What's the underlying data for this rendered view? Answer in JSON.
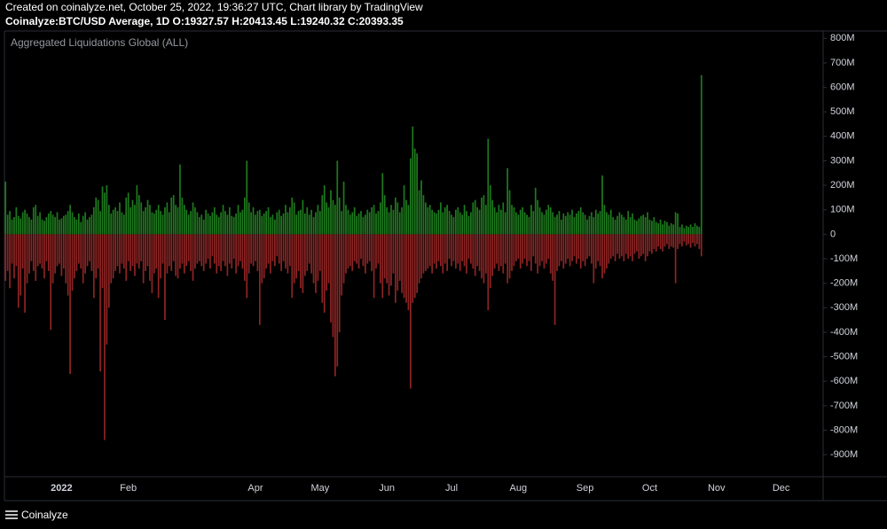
{
  "header": {
    "line1": "Created on coinalyze.net, October 25, 2022, 19:36:27 UTC, Chart library by TradingView",
    "line2": "Coinalyze:BTC/USD Average, 1D O:19327.57 H:20413.45 L:19240.32 C:20393.35"
  },
  "footer": {
    "brand": "Coinalyze"
  },
  "chart_data": {
    "type": "bar",
    "title": "Aggregated Liquidations Global (ALL)",
    "categories": [
      null,
      null,
      null,
      null,
      null,
      null,
      null,
      null,
      null,
      null,
      null,
      null,
      null,
      null,
      null,
      null,
      null,
      null,
      null,
      null,
      null,
      null,
      null,
      null,
      null,
      null,
      "2022",
      null,
      null,
      null,
      null,
      null,
      null,
      null,
      null,
      null,
      null,
      null,
      null,
      null,
      null,
      null,
      null,
      null,
      null,
      null,
      null,
      null,
      null,
      null,
      null,
      null,
      null,
      null,
      null,
      null,
      null,
      "Feb",
      null,
      null,
      null,
      null,
      null,
      null,
      null,
      null,
      null,
      null,
      null,
      null,
      null,
      null,
      null,
      null,
      null,
      null,
      null,
      null,
      null,
      null,
      null,
      null,
      null,
      null,
      null,
      null,
      null,
      null,
      null,
      null,
      null,
      null,
      null,
      null,
      null,
      null,
      null,
      null,
      null,
      null,
      null,
      null,
      null,
      null,
      null,
      null,
      null,
      null,
      null,
      null,
      null,
      null,
      null,
      null,
      null,
      null,
      "Apr",
      null,
      null,
      null,
      null,
      null,
      null,
      null,
      null,
      null,
      null,
      null,
      null,
      null,
      null,
      null,
      null,
      null,
      null,
      null,
      null,
      null,
      null,
      null,
      null,
      null,
      null,
      null,
      null,
      null,
      "May",
      null,
      null,
      null,
      null,
      null,
      null,
      null,
      null,
      null,
      null,
      null,
      null,
      null,
      null,
      null,
      null,
      null,
      null,
      null,
      null,
      null,
      null,
      null,
      null,
      null,
      null,
      null,
      null,
      null,
      null,
      "Jun",
      null,
      null,
      null,
      null,
      null,
      null,
      null,
      null,
      null,
      null,
      null,
      null,
      null,
      null,
      null,
      null,
      null,
      null,
      null,
      null,
      null,
      null,
      null,
      null,
      null,
      null,
      null,
      null,
      null,
      "Jul",
      null,
      null,
      null,
      null,
      null,
      null,
      null,
      null,
      null,
      null,
      null,
      null,
      null,
      null,
      null,
      null,
      null,
      null,
      null,
      null,
      null,
      null,
      null,
      null,
      null,
      null,
      null,
      null,
      null,
      null,
      "Aug",
      null,
      null,
      null,
      null,
      null,
      null,
      null,
      null,
      null,
      null,
      null,
      null,
      null,
      null,
      null,
      null,
      null,
      null,
      null,
      null,
      null,
      null,
      null,
      null,
      null,
      null,
      null,
      null,
      null,
      null,
      "Sep",
      null,
      null,
      null,
      null,
      null,
      null,
      null,
      null,
      null,
      null,
      null,
      null,
      null,
      null,
      null,
      null,
      null,
      null,
      null,
      null,
      null,
      null,
      null,
      null,
      null,
      null,
      null,
      null,
      null,
      "Oct",
      null,
      null,
      null,
      null,
      null,
      null,
      null,
      null,
      null,
      null,
      null,
      null,
      null,
      null,
      null,
      null,
      null,
      null,
      null,
      null,
      null,
      null,
      null,
      null,
      null,
      null,
      null,
      null,
      null,
      null,
      "Nov",
      null,
      null,
      null,
      null,
      null,
      null,
      null,
      null,
      null,
      null,
      null,
      null,
      null,
      null,
      null,
      null,
      null,
      null,
      null,
      null,
      null,
      null,
      null,
      null,
      null,
      null,
      null,
      null,
      null,
      "Dec",
      null,
      null,
      null,
      null,
      null,
      null,
      null,
      null,
      null,
      null,
      null,
      null,
      null,
      null,
      null,
      null,
      null,
      null,
      null
    ],
    "series": [
      {
        "color": "#1e7a1e",
        "values": [
          215,
          80,
          95,
          60,
          70,
          110,
          75,
          65,
          90,
          100,
          85,
          70,
          60,
          110,
          120,
          75,
          90,
          60,
          55,
          70,
          85,
          95,
          80,
          70,
          90,
          60,
          65,
          75,
          80,
          95,
          120,
          90,
          70,
          60,
          85,
          50,
          75,
          90,
          60,
          70,
          80,
          110,
          150,
          140,
          95,
          195,
          170,
          200,
          120,
          85,
          100,
          110,
          95,
          130,
          90,
          80,
          150,
          170,
          110,
          140,
          120,
          200,
          160,
          130,
          95,
          110,
          140,
          120,
          90,
          85,
          100,
          120,
          95,
          80,
          110,
          130,
          90,
          150,
          160,
          120,
          110,
          285,
          150,
          120,
          100,
          80,
          95,
          130,
          110,
          90,
          70,
          80,
          60,
          100,
          85,
          75,
          90,
          110,
          80,
          70,
          90,
          120,
          95,
          80,
          110,
          75,
          70,
          85,
          120,
          90,
          100,
          150,
          300,
          130,
          90,
          110,
          80,
          95,
          100,
          75,
          85,
          95,
          110,
          70,
          80,
          60,
          90,
          100,
          75,
          85,
          120,
          90,
          110,
          150,
          130,
          80,
          95,
          100,
          140,
          85,
          110,
          80,
          100,
          70,
          90,
          120,
          95,
          160,
          200,
          130,
          110,
          180,
          140,
          120,
          300,
          150,
          95,
          215,
          120,
          100,
          80,
          90,
          110,
          75,
          85,
          95,
          70,
          80,
          100,
          90,
          110,
          120,
          85,
          95,
          130,
          250,
          160,
          110,
          90,
          120,
          100,
          150,
          130,
          90,
          110,
          200,
          140,
          120,
          310,
          440,
          350,
          330,
          180,
          220,
          160,
          130,
          110,
          120,
          100,
          90,
          85,
          100,
          130,
          90,
          110,
          120,
          95,
          80,
          70,
          100,
          110,
          90,
          80,
          120,
          95,
          75,
          90,
          130,
          140,
          110,
          100,
          150,
          160,
          120,
          390,
          200,
          140,
          110,
          90,
          120,
          100,
          130,
          90,
          270,
          180,
          120,
          110,
          90,
          80,
          100,
          110,
          90,
          80,
          70,
          120,
          95,
          190,
          140,
          110,
          90,
          80,
          100,
          120,
          110,
          90,
          70,
          80,
          95,
          60,
          85,
          75,
          90,
          80,
          100,
          70,
          85,
          95,
          110,
          90,
          80,
          60,
          75,
          90,
          70,
          100,
          85,
          95,
          240,
          120,
          90,
          80,
          100,
          70,
          60,
          75,
          90,
          80,
          70,
          60,
          95,
          70,
          85,
          60,
          55,
          65,
          75,
          80,
          70,
          90,
          60,
          55,
          70,
          50,
          45,
          60,
          40,
          55,
          50,
          35,
          45,
          40,
          90,
          85,
          30,
          40,
          25,
          35,
          30,
          40,
          30,
          45,
          35,
          30,
          650,
          null,
          null,
          null,
          null,
          null,
          null,
          null,
          null,
          null,
          null,
          null,
          null,
          null,
          null,
          null,
          null,
          null,
          null,
          null,
          null,
          null,
          null,
          null,
          null,
          null,
          null,
          null,
          null,
          null,
          null,
          null,
          null,
          null,
          null,
          null,
          null,
          null,
          null,
          null,
          null,
          null,
          null,
          null,
          null,
          null,
          null,
          null,
          null,
          null,
          null,
          null,
          null,
          null,
          null,
          null,
          null
        ]
      },
      {
        "color": "#8e2424",
        "values": [
          -190,
          -150,
          -220,
          -120,
          -180,
          -130,
          -300,
          -250,
          -140,
          -320,
          -200,
          -160,
          -110,
          -150,
          -190,
          -130,
          -120,
          -140,
          -180,
          -110,
          -150,
          -390,
          -200,
          -160,
          -130,
          -120,
          -170,
          -140,
          -200,
          -250,
          -570,
          -230,
          -180,
          -150,
          -120,
          -140,
          -200,
          -160,
          -130,
          -110,
          -150,
          -260,
          -180,
          -140,
          -560,
          -220,
          -840,
          -450,
          -300,
          -200,
          -180,
          -150,
          -130,
          -160,
          -120,
          -140,
          -190,
          -110,
          -150,
          -130,
          -170,
          -120,
          -140,
          -110,
          -200,
          -150,
          -130,
          -190,
          -240,
          -160,
          -140,
          -260,
          -180,
          -120,
          -350,
          -160,
          -130,
          -150,
          -110,
          -170,
          -180,
          -140,
          -120,
          -160,
          -130,
          -110,
          -150,
          -190,
          -140,
          -120,
          -110,
          -130,
          -150,
          -120,
          -100,
          -140,
          -90,
          -120,
          -160,
          -130,
          -150,
          -110,
          -130,
          -170,
          -120,
          -140,
          -100,
          -160,
          -130,
          -110,
          -140,
          -190,
          -260,
          -160,
          -120,
          -130,
          -110,
          -150,
          -370,
          -200,
          -180,
          -140,
          -120,
          -160,
          -110,
          -130,
          -90,
          -120,
          -150,
          -110,
          -140,
          -160,
          -130,
          -260,
          -200,
          -180,
          -150,
          -220,
          -240,
          -170,
          -150,
          -120,
          -160,
          -200,
          -240,
          -190,
          -150,
          -280,
          -320,
          -230,
          -200,
          -360,
          -420,
          -580,
          -540,
          -400,
          -250,
          -200,
          -160,
          -140,
          -130,
          -150,
          -110,
          -120,
          -140,
          -100,
          -130,
          -160,
          -120,
          -110,
          -150,
          -260,
          -140,
          -120,
          -200,
          -260,
          -180,
          -200,
          -250,
          -210,
          -160,
          -280,
          -230,
          -190,
          -240,
          -260,
          -280,
          -310,
          -630,
          -280,
          -260,
          -240,
          -200,
          -180,
          -160,
          -150,
          -140,
          -130,
          -160,
          -120,
          -140,
          -110,
          -130,
          -160,
          -120,
          -150,
          -100,
          -130,
          -110,
          -140,
          -120,
          -150,
          -110,
          -130,
          -160,
          -100,
          -120,
          -140,
          -170,
          -130,
          -150,
          -180,
          -200,
          -160,
          -310,
          -220,
          -170,
          -140,
          -120,
          -150,
          -130,
          -160,
          -120,
          -200,
          -180,
          -150,
          -130,
          -110,
          -100,
          -140,
          -120,
          -100,
          -130,
          -110,
          -150,
          -90,
          -120,
          -160,
          -130,
          -110,
          -140,
          -120,
          -100,
          -160,
          -190,
          -370,
          -150,
          -130,
          -110,
          -140,
          -120,
          -100,
          -130,
          -110,
          -90,
          -120,
          -100,
          -140,
          -110,
          -130,
          -100,
          -90,
          -120,
          -200,
          -140,
          -110,
          -130,
          -180,
          -160,
          -140,
          -120,
          -100,
          -90,
          -110,
          -80,
          -100,
          -90,
          -110,
          -80,
          -100,
          -90,
          -110,
          -80,
          -70,
          -100,
          -90,
          -80,
          -110,
          -90,
          -70,
          -80,
          -60,
          -70,
          -50,
          -60,
          -70,
          -50,
          -40,
          -60,
          -50,
          -55,
          -200,
          -60,
          -40,
          -50,
          -30,
          -45,
          -40,
          -55,
          -35,
          -50,
          -40,
          -60,
          -90,
          null,
          null,
          null,
          null,
          null,
          null,
          null,
          null,
          null,
          null,
          null,
          null,
          null,
          null,
          null,
          null,
          null,
          null,
          null,
          null,
          null,
          null,
          null,
          null,
          null,
          null,
          null,
          null,
          null,
          null,
          null,
          null,
          null,
          null,
          null,
          null,
          null,
          null,
          null,
          null,
          null,
          null,
          null,
          null,
          null,
          null,
          null,
          null,
          null,
          null,
          null,
          null,
          null,
          null,
          null,
          null
        ]
      }
    ],
    "ylim": [
      -990,
      830
    ],
    "yticks": [
      {
        "value": -900,
        "label": "-900M"
      },
      {
        "value": -800,
        "label": "-800M"
      },
      {
        "value": -700,
        "label": "-700M"
      },
      {
        "value": -600,
        "label": "-600M"
      },
      {
        "value": -500,
        "label": "-500M"
      },
      {
        "value": -400,
        "label": "-400M"
      },
      {
        "value": -300,
        "label": "-300M"
      },
      {
        "value": -200,
        "label": "-200M"
      },
      {
        "value": -100,
        "label": "-100M"
      },
      0,
      {
        "value": 100,
        "label": "100M"
      },
      {
        "value": 200,
        "label": "200M"
      },
      {
        "value": 300,
        "label": "300M"
      },
      {
        "value": 400,
        "label": "400M"
      },
      {
        "value": 500,
        "label": "500M"
      },
      {
        "value": 600,
        "label": "600M"
      },
      {
        "value": 700,
        "label": "700M"
      },
      {
        "value": 800,
        "label": "800M"
      }
    ],
    "grid": false
  }
}
